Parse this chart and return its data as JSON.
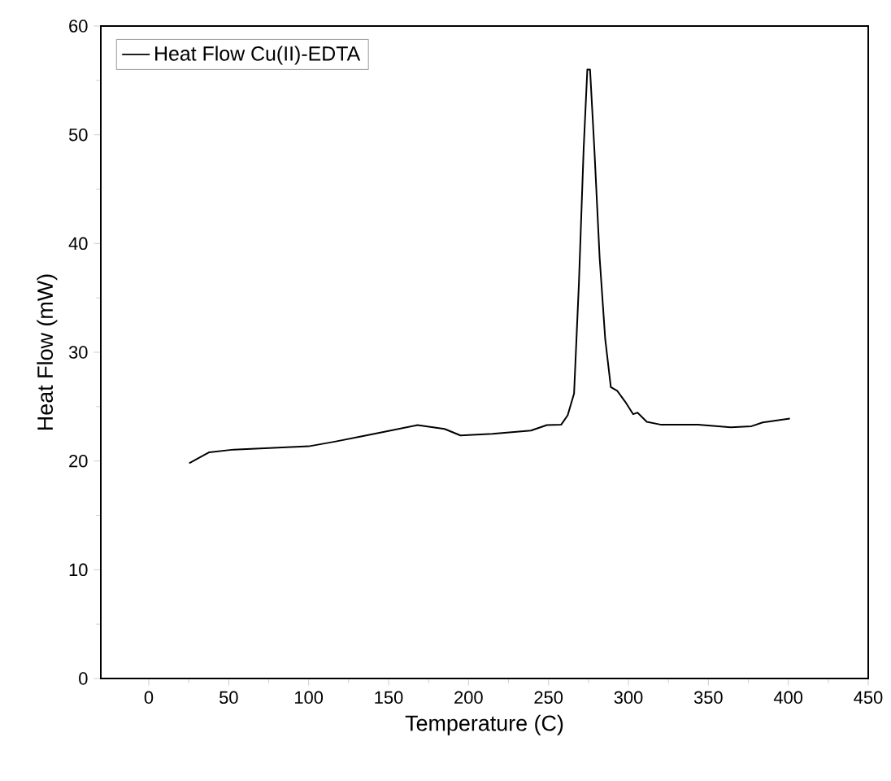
{
  "chart_data": {
    "type": "line",
    "xlabel": "Temperature (C)",
    "ylabel": "Heat Flow (mW)",
    "xlim": [
      -30,
      450
    ],
    "xticks": [
      0,
      50,
      100,
      150,
      200,
      250,
      300,
      350,
      400,
      450
    ],
    "ylim": [
      0,
      60
    ],
    "yticks": [
      0,
      10,
      20,
      30,
      40,
      50,
      60
    ],
    "legend": "top left",
    "grid": false,
    "series": [
      {
        "name": "Heat Flow Cu(II)-EDTA",
        "color": "#000000",
        "x": [
          25.3,
          37.8,
          53,
          100,
          117,
          134,
          148,
          168,
          185,
          195,
          215,
          239,
          249,
          258,
          262,
          266,
          269,
          272,
          274.3,
          276,
          278.7,
          282,
          285.5,
          289,
          293,
          298,
          303,
          305.7,
          311.5,
          320,
          343.6,
          364,
          377,
          384,
          401
        ],
        "values": [
          19.8,
          20.8,
          21.05,
          21.35,
          21.8,
          22.3,
          22.7,
          23.3,
          22.95,
          22.35,
          22.5,
          22.8,
          23.3,
          23.35,
          24.2,
          26.2,
          36.2,
          48.7,
          56,
          56,
          48.7,
          38.7,
          31.2,
          26.8,
          26.45,
          25.45,
          24.3,
          24.45,
          23.6,
          23.35,
          23.35,
          23.1,
          23.2,
          23.55,
          23.9
        ]
      }
    ]
  }
}
